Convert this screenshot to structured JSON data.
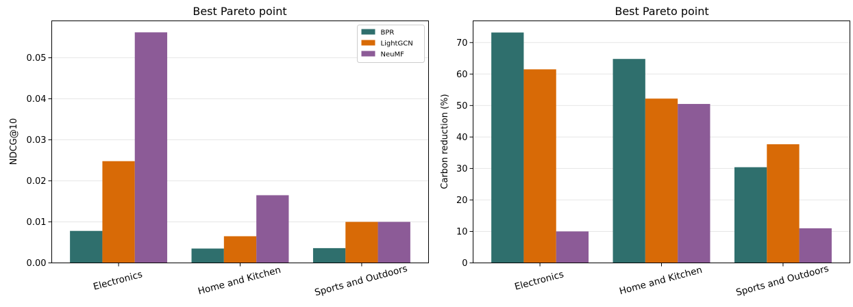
{
  "chart_data": [
    {
      "type": "bar",
      "title": "Best Pareto point",
      "xlabel": "",
      "ylabel": "NDCG@10",
      "categories": [
        "Electronics",
        "Home and Kitchen",
        "Sports and Outdoors"
      ],
      "series": [
        {
          "name": "BPR",
          "color": "#2f6f6d",
          "values": [
            0.0078,
            0.0035,
            0.0036
          ]
        },
        {
          "name": "LightGCN",
          "color": "#d86a06",
          "values": [
            0.0248,
            0.0065,
            0.01
          ]
        },
        {
          "name": "NeuMF",
          "color": "#8c5b97",
          "values": [
            0.0562,
            0.0165,
            0.01
          ]
        }
      ],
      "ylim": [
        0,
        0.059
      ],
      "yticks": [
        0.0,
        0.01,
        0.02,
        0.03,
        0.04,
        0.05
      ],
      "ytick_labels": [
        "0.00",
        "0.01",
        "0.02",
        "0.03",
        "0.04",
        "0.05"
      ],
      "grid": "horizontal",
      "legend": "top-right"
    },
    {
      "type": "bar",
      "title": "Best Pareto point",
      "xlabel": "",
      "ylabel": "Carbon reduction (%)",
      "categories": [
        "Electronics",
        "Home and Kitchen",
        "Sports and Outdoors"
      ],
      "series": [
        {
          "name": "BPR",
          "color": "#2f6f6d",
          "values": [
            73.2,
            64.8,
            30.4
          ]
        },
        {
          "name": "LightGCN",
          "color": "#d86a06",
          "values": [
            61.5,
            52.2,
            37.7
          ]
        },
        {
          "name": "NeuMF",
          "color": "#8c5b97",
          "values": [
            10.0,
            50.5,
            11.0
          ]
        }
      ],
      "ylim": [
        0,
        76.9
      ],
      "yticks": [
        0,
        10,
        20,
        30,
        40,
        50,
        60,
        70
      ],
      "ytick_labels": [
        "0",
        "10",
        "20",
        "30",
        "40",
        "50",
        "60",
        "70"
      ],
      "grid": "horizontal",
      "legend": "none"
    }
  ]
}
